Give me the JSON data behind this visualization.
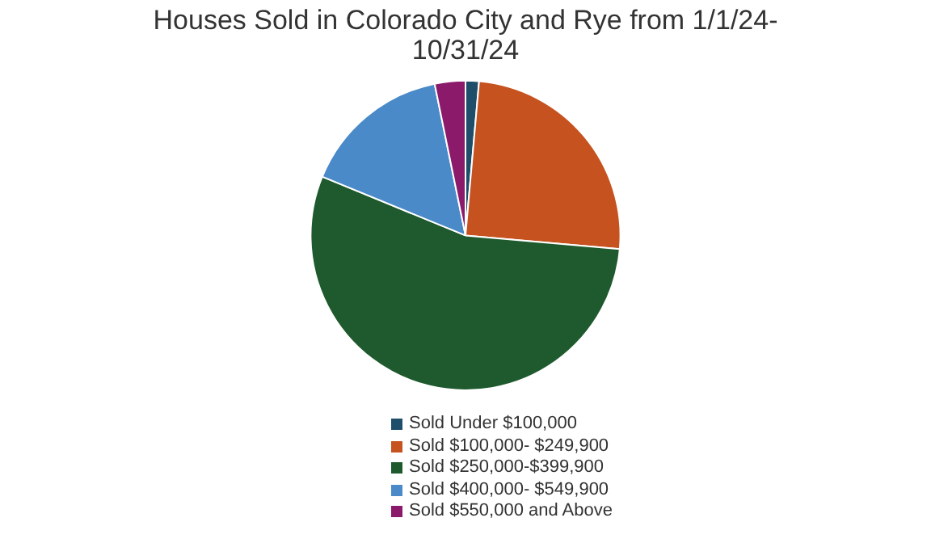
{
  "chart_data": {
    "type": "pie",
    "title": "Houses Sold in Colorado City and Rye from 1/1/24-10/31/24",
    "categories": [
      "Sold Under $100,000",
      "Sold $100,000- $249,900",
      "Sold $250,000-$399,900",
      "Sold $400,000- $549,900",
      "Sold $550,000 and Above"
    ],
    "values": [
      1.4,
      25,
      54.8,
      15.6,
      3.2
    ],
    "colors": [
      "#1f4e6b",
      "#c5521f",
      "#1f5a2e",
      "#4a8ac8",
      "#8b1a6b"
    ],
    "legend": "bottom"
  }
}
